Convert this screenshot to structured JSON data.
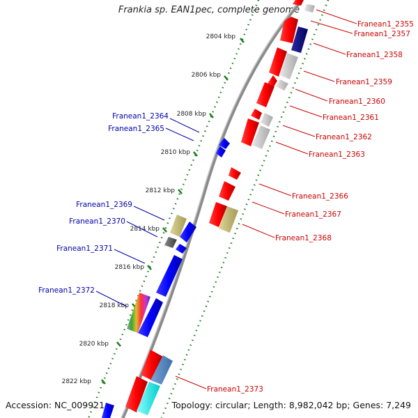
{
  "title": "Frankia sp. EAN1pec, complete genome",
  "footer": {
    "accession": "Accession: NC_009921",
    "topology": "Topology: circular; Length: 8,982,042 bp; Genes: 7,249"
  },
  "scale_labels": [
    "2804 kbp",
    "2806 kbp",
    "2808 kbp",
    "2810 kbp",
    "2812 kbp",
    "2814 kbp",
    "2816 kbp",
    "2818 kbp",
    "2820 kbp",
    "2822 kbp"
  ],
  "gene_labels_right": [
    "Franean1_2355",
    "Franean1_2357",
    "Franean1_2358",
    "Franean1_2359",
    "Franean1_2360",
    "Franean1_2361",
    "Franean1_2362",
    "Franean1_2363",
    "Franean1_2366",
    "Franean1_2367",
    "Franean1_2368",
    "Franean1_2373"
  ],
  "gene_labels_left": [
    "Franean1_2364",
    "Franean1_2365",
    "Franean1_2369",
    "Franean1_2370",
    "Franean1_2371",
    "Franean1_2372"
  ],
  "colors": {
    "forward_gene": "#ff0000",
    "reverse_gene": "#0000ff",
    "right_label": "#cc0000",
    "left_label": "#0000aa",
    "tick": "#1a7a1a",
    "backbone": "#8a8a8a"
  }
}
